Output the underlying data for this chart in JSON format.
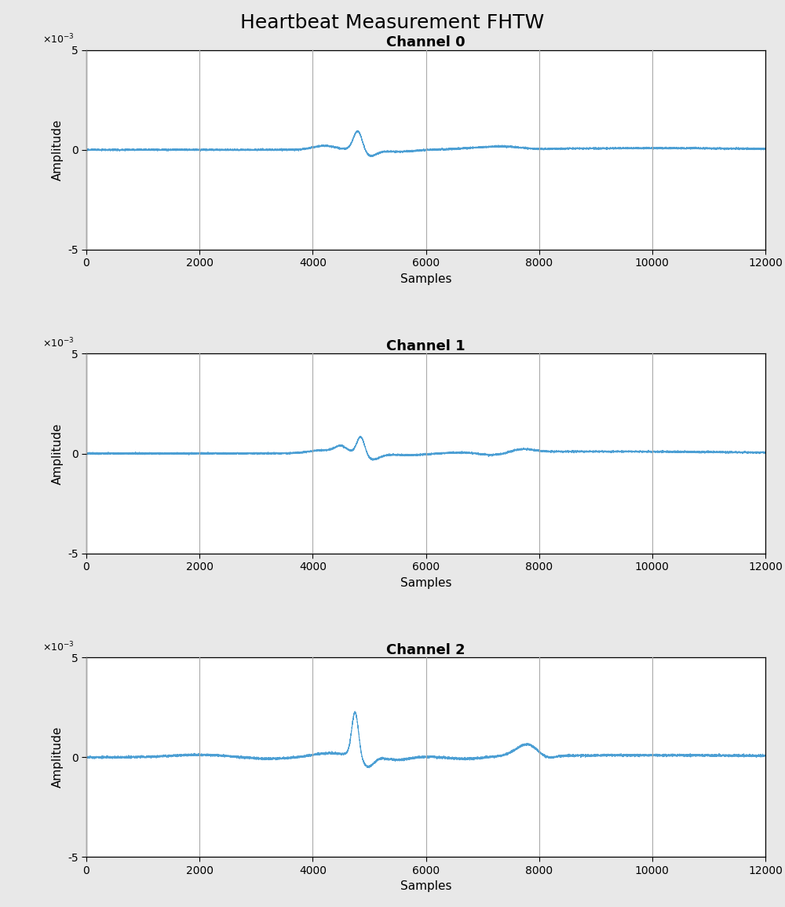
{
  "title": "Heartbeat Measurement FHTW",
  "channels": [
    "Channel 0",
    "Channel 1",
    "Channel 2"
  ],
  "n_samples": 12001,
  "xlim": [
    0,
    12000
  ],
  "ylim": [
    -0.005,
    0.005
  ],
  "yticks": [
    -0.005,
    0,
    0.005
  ],
  "xticks": [
    0,
    2000,
    4000,
    6000,
    8000,
    10000,
    12000
  ],
  "xlabel": "Samples",
  "ylabel": "Amplitude",
  "line_color": "#4C9FD4",
  "bg_color": "#E8E8E8",
  "axes_bg_color": "#FFFFFF",
  "grid_color": "#AAAAAA",
  "title_fontsize": 18,
  "label_fontsize": 11,
  "channel_title_fontsize": 13
}
